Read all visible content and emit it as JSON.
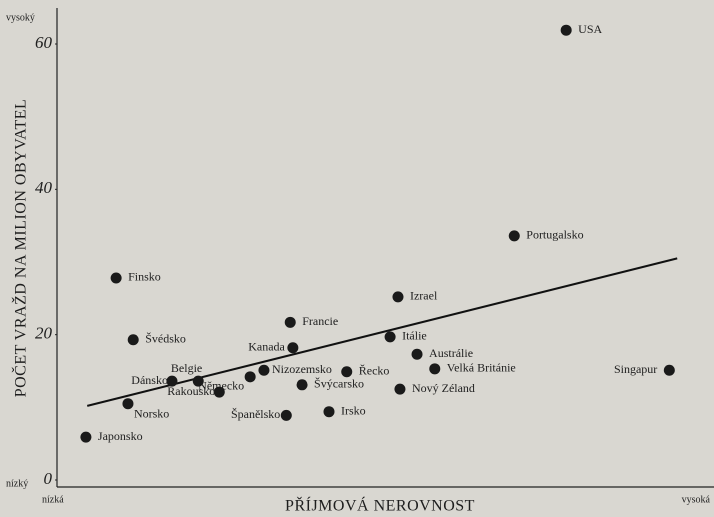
{
  "chart_data": {
    "type": "scatter",
    "x_label": "PŘÍJMOVÁ NEROVNOST",
    "y_label": "POČET VRAŽD NA MILION OBYVATEL",
    "y_high": "vysoký",
    "y_low": "nízký",
    "x_low": "nízká",
    "x_high": "vysoká",
    "categories": [
      "USA",
      "Portugalsko",
      "Finsko",
      "Izrael",
      "Francie",
      "Itálie",
      "Švédsko",
      "Kanada",
      "Austrálie",
      "Velká Británie",
      "Singapur",
      "Nizozemsko",
      "Řecko",
      "Německo",
      "Belgie",
      "Dánsko",
      "Švýcarsko",
      "Rakousko",
      "Nový Zéland",
      "Norsko",
      "Španělsko",
      "Irsko",
      "Japonsko"
    ],
    "x": [
      77.5,
      69.6,
      9.0,
      51.9,
      35.5,
      50.7,
      11.6,
      35.9,
      54.8,
      57.5,
      93.2,
      31.5,
      44.1,
      29.4,
      21.5,
      17.5,
      37.3,
      24.7,
      52.2,
      10.8,
      34.9,
      41.4,
      4.4
    ],
    "values": [
      61.9,
      33.6,
      27.8,
      25.2,
      21.7,
      19.7,
      19.3,
      18.2,
      17.3,
      15.3,
      15.1,
      15.1,
      14.9,
      14.2,
      13.6,
      13.6,
      13.1,
      12.1,
      12.5,
      10.5,
      8.9,
      9.4,
      5.9
    ],
    "color": "#1a1a1a",
    "trend": {
      "x": [
        4.6,
        94.4
      ],
      "y": [
        10.2,
        30.5
      ]
    },
    "xlim": [
      0,
      100
    ],
    "ylim": [
      0,
      60
    ],
    "yticks": [
      0,
      20,
      40,
      60
    ]
  }
}
